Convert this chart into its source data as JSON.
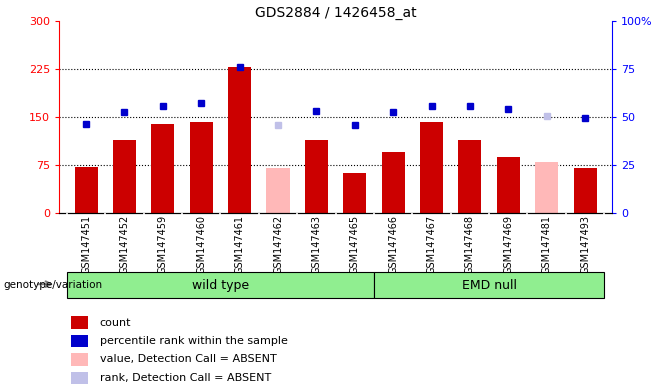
{
  "title": "GDS2884 / 1426458_at",
  "samples": [
    "GSM147451",
    "GSM147452",
    "GSM147459",
    "GSM147460",
    "GSM147461",
    "GSM147462",
    "GSM147463",
    "GSM147465",
    "GSM147466",
    "GSM147467",
    "GSM147468",
    "GSM147469",
    "GSM147481",
    "GSM147493"
  ],
  "count_values": [
    72,
    115,
    140,
    143,
    228,
    null,
    115,
    62,
    95,
    143,
    115,
    88,
    null,
    70
  ],
  "count_absent": [
    null,
    null,
    null,
    null,
    null,
    70,
    null,
    null,
    null,
    null,
    null,
    null,
    80,
    null
  ],
  "rank_values": [
    140,
    158,
    168,
    172,
    228,
    null,
    160,
    138,
    158,
    168,
    168,
    162,
    null,
    148
  ],
  "rank_absent": [
    null,
    null,
    null,
    null,
    null,
    138,
    null,
    null,
    null,
    null,
    null,
    null,
    152,
    null
  ],
  "ylim_left": [
    0,
    300
  ],
  "ylim_right": [
    0,
    100
  ],
  "yticks_left": [
    0,
    75,
    150,
    225,
    300
  ],
  "yticks_right": [
    0,
    25,
    50,
    75,
    100
  ],
  "ytick_labels_left": [
    "0",
    "75",
    "150",
    "225",
    "300"
  ],
  "ytick_labels_right": [
    "0",
    "25",
    "50",
    "75",
    "100%"
  ],
  "hlines": [
    75,
    150,
    225
  ],
  "bar_color": "#cc0000",
  "bar_absent_color": "#ffb8b8",
  "rank_color": "#0000cc",
  "rank_absent_color": "#c0c0e8",
  "wild_type_indices": [
    0,
    1,
    2,
    3,
    4,
    5,
    6,
    7
  ],
  "emd_null_indices": [
    8,
    9,
    10,
    11,
    12,
    13
  ],
  "wild_type_label": "wild type",
  "emd_null_label": "EMD null",
  "group_color": "#90ee90",
  "bg_color": "#c8c8c8",
  "xlabel_label": "genotype/variation",
  "legend_items": [
    {
      "label": "count",
      "color": "#cc0000"
    },
    {
      "label": "percentile rank within the sample",
      "color": "#0000cc"
    },
    {
      "label": "value, Detection Call = ABSENT",
      "color": "#ffb8b8"
    },
    {
      "label": "rank, Detection Call = ABSENT",
      "color": "#c0c0e8"
    }
  ]
}
